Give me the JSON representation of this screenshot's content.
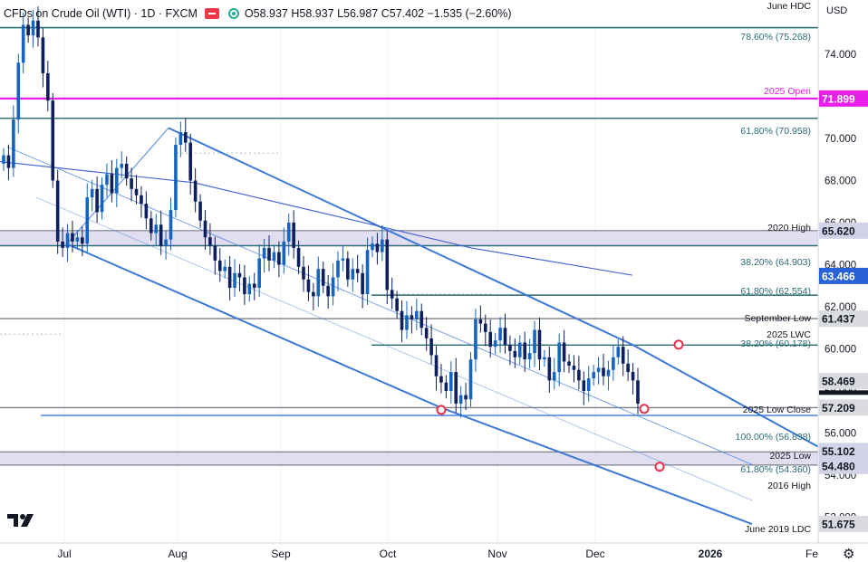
{
  "header": {
    "symbol": "CFDs on Crude Oil (WTI) · 1D · FXCM",
    "ohlc_label": "O58.937 H58.937 L56.987 C57.402 −1.535 (−2.60%)"
  },
  "currency": "USD",
  "colors": {
    "up_candle": "#1565c0",
    "down_candle": "#0d1f5c",
    "channel": "#3c78d8",
    "fib_line": "#2a6a74",
    "magenta": "#e91ee9",
    "grey_line": "#7b7f8a",
    "zone_fill": "#d9d6ec",
    "ma": "#3c5fd6",
    "annotation": "#2a6a74",
    "marker": "#e8304b",
    "axis_text": "#131722",
    "label_dark": "#131722"
  },
  "icons": {
    "logo": "tradingview-logo-icon",
    "settings": "gear-icon"
  },
  "chart_data": {
    "type": "candlestick",
    "title": "CFDs on Crude Oil (WTI) · 1D · FXCM",
    "ylim": [
      51.675,
      75.9
    ],
    "y_ticks": [
      74.0,
      72.0,
      70.0,
      68.0,
      66.0,
      64.0,
      62.0,
      60.0,
      58.0,
      56.0,
      54.0,
      52.0
    ],
    "x_labels": [
      "Jul",
      "Aug",
      "Sep",
      "Oct",
      "Nov",
      "Dec",
      "2026",
      "Fe"
    ],
    "last_close": 57.402,
    "candle_closes": [
      69.2,
      68.6,
      70.9,
      73.6,
      75.4,
      74.9,
      75.6,
      74.8,
      73.1,
      71.8,
      68.0,
      65.1,
      64.8,
      65.5,
      65.1,
      65.3,
      65.0,
      67.2,
      67.6,
      66.5,
      67.8,
      68.3,
      67.4,
      68.6,
      68.8,
      68.1,
      67.6,
      67.3,
      66.9,
      66.2,
      65.5,
      65.9,
      64.9,
      65.2,
      66.6,
      69.7,
      70.3,
      69.8,
      68.0,
      67.0,
      66.1,
      65.3,
      64.9,
      64.2,
      63.7,
      63.9,
      62.9,
      63.6,
      63.4,
      62.6,
      63.1,
      62.9,
      64.3,
      64.8,
      64.2,
      64.6,
      64.0,
      65.1,
      66.0,
      64.8,
      63.9,
      63.3,
      62.7,
      62.5,
      63.8,
      63.0,
      62.5,
      63.4,
      64.2,
      64.3,
      63.3,
      63.8,
      63.6,
      62.6,
      64.7,
      65.0,
      64.6,
      65.2,
      62.8,
      62.4,
      61.8,
      60.9,
      61.6,
      61.4,
      61.8,
      61.0,
      60.5,
      59.7,
      58.7,
      58.4,
      58.0,
      58.9,
      57.4,
      57.8,
      57.6,
      59.5,
      61.4,
      61.2,
      60.8,
      60.1,
      60.4,
      61.0,
      60.2,
      59.9,
      59.6,
      60.3,
      59.5,
      59.8,
      60.9,
      59.5,
      59.6,
      58.5,
      58.9,
      60.3,
      59.4,
      59.2,
      59.0,
      58.5,
      58.0,
      58.6,
      58.9,
      59.1,
      58.7,
      59.0,
      59.6,
      60.1,
      59.3,
      58.9,
      58.5,
      57.4
    ],
    "series": [
      {
        "name": "",
        "kind": "channel-upper",
        "points": [
          [
            "late Jul",
            70.5
          ],
          [
            "Dec 10",
            60.2
          ],
          [
            "Feb",
            54.0
          ]
        ]
      },
      {
        "name": "",
        "kind": "channel-lower",
        "points": [
          [
            "Jul 2",
            65.0
          ],
          [
            "Oct 20",
            57.2
          ],
          [
            "Jan 24",
            51.675
          ]
        ]
      },
      {
        "name": "",
        "kind": "channel-median",
        "points": [
          [
            "Jun 12",
            69.6
          ],
          [
            "Jan 24",
            54.5
          ]
        ]
      },
      {
        "name": "",
        "kind": "moving-average",
        "points": [
          [
            "Jun",
            68.9
          ],
          [
            "Aug 5",
            67.9
          ],
          [
            "Sep 20",
            66.6
          ],
          [
            "Oct 30",
            64.8
          ],
          [
            "Dec 10",
            63.5
          ]
        ]
      }
    ],
    "levels": [
      {
        "value": 75.268,
        "label": "78.60% (75.268)"
      },
      {
        "value": 75.6,
        "label": "June HDC"
      },
      {
        "value": 71.899,
        "label": "2025 Open"
      },
      {
        "value": 70.958,
        "label": "61.80% (70.958)"
      },
      {
        "value": 65.62,
        "label": "2020 High"
      },
      {
        "value": 64.903,
        "label": "38.20% (64.903)"
      },
      {
        "value": 62.554,
        "label": "61.80% (62.554)"
      },
      {
        "value": 61.437,
        "label": "September Low"
      },
      {
        "value": 61.437,
        "label": "2025 LWC"
      },
      {
        "value": 60.178,
        "label": "38.20% (60.178)"
      },
      {
        "value": 57.209,
        "label": "2025 Low Close"
      },
      {
        "value": 56.838,
        "label": "100.00% (56.838)"
      },
      {
        "value": 55.102,
        "label": "2025 Low"
      },
      {
        "value": 54.36,
        "label": "61.80% (54.360)"
      },
      {
        "value": 54.48,
        "label": "2016 High"
      },
      {
        "value": 51.675,
        "label": "June 2019 LDC"
      }
    ],
    "price_labels": [
      "71.899",
      "65.620",
      "63.466",
      "61.437",
      "58.469",
      "57.209",
      "55.102",
      "54.480",
      "51.675"
    ],
    "markers": [
      {
        "date": "Oct 20",
        "value": 57.1
      },
      {
        "date": "Dec 11",
        "value": 60.2
      },
      {
        "date": "Dec 15",
        "value": 57.15
      },
      {
        "date": "Dec 23",
        "value": 54.4
      }
    ]
  }
}
